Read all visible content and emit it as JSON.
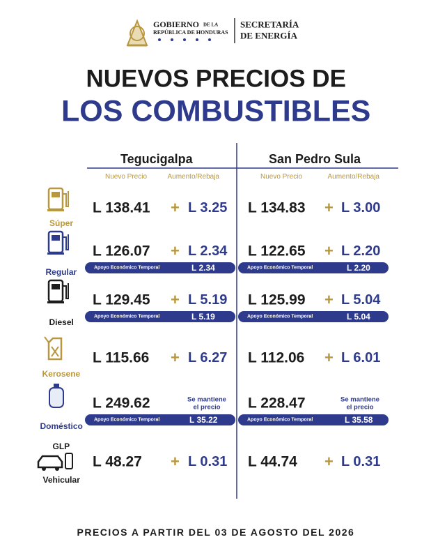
{
  "header": {
    "gobierno": "GOBIERNO",
    "de_la": "DE LA",
    "republica": "REPÚBLICA DE HONDURAS",
    "secretaria": [
      "SECRETARÍA",
      "DE ENERGÍA"
    ]
  },
  "title": [
    "NUEVOS PRECIOS DE",
    "LOS COMBUSTIBLES"
  ],
  "cities": [
    {
      "name": "Tegucigalpa",
      "col_price": "Nuevo Precio",
      "col_change": "Aumento/Rebaja"
    },
    {
      "name": "San Pedro Sula",
      "col_price": "Nuevo Precio",
      "col_change": "Aumento/Rebaja"
    }
  ],
  "rows": [
    {
      "label": [
        "Súper"
      ],
      "prices": [
        {
          "price": "L 138.41",
          "sign": "+",
          "change": [
            "L 3.25"
          ]
        },
        {
          "price": "L 134.83",
          "sign": "+",
          "change": [
            "L 3.00"
          ]
        }
      ]
    },
    {
      "label": [
        "Regular"
      ],
      "prices": [
        {
          "price": "L 126.07",
          "sign": "+",
          "change": [
            "L 2.34"
          ],
          "support": {
            "label": "Apoyo Económico Temporal",
            "amount": "L 2.34"
          }
        },
        {
          "price": "L 122.65",
          "sign": "+",
          "change": [
            "L 2.20"
          ],
          "support": {
            "label": "Apoyo Económico Temporal",
            "amount": "L 2.20"
          }
        }
      ]
    },
    {
      "label": [
        "Diesel"
      ],
      "prices": [
        {
          "price": "L 129.45",
          "sign": "+",
          "change": [
            "L 5.19"
          ],
          "support": {
            "label": "Apoyo Económico Temporal",
            "amount": "L 5.19"
          }
        },
        {
          "price": "L 125.99",
          "sign": "+",
          "change": [
            "L 5.04"
          ],
          "support": {
            "label": "Apoyo Económico Temporal",
            "amount": "L 5.04"
          }
        }
      ]
    },
    {
      "label": [
        "Kerosene"
      ],
      "prices": [
        {
          "price": "L 115.66",
          "sign": "+",
          "change": [
            "L 6.27"
          ]
        },
        {
          "price": "L 112.06",
          "sign": "+",
          "change": [
            "L 6.01"
          ]
        }
      ]
    },
    {
      "label": [
        "Doméstico"
      ],
      "prices": [
        {
          "price": "L 249.62",
          "change": [
            "Se mantiene",
            "el precio"
          ],
          "support": {
            "label": "Apoyo Económico Temporal",
            "amount": "L 35.22"
          }
        },
        {
          "price": "L 228.47",
          "change": [
            "Se mantiene",
            "el precio"
          ],
          "support": {
            "label": "Apoyo Económico Temporal",
            "amount": "L 35.58"
          }
        }
      ]
    },
    {
      "label": [
        "GLP",
        "Vehicular"
      ],
      "prices": [
        {
          "price": "L 48.27",
          "sign": "+",
          "change": [
            "L 0.31"
          ]
        },
        {
          "price": "L 44.74",
          "sign": "+",
          "change": [
            "L 0.31"
          ]
        }
      ]
    }
  ],
  "footer": "PRECIOS A PARTIR DEL 03 DE AGOSTO DEL 2026"
}
